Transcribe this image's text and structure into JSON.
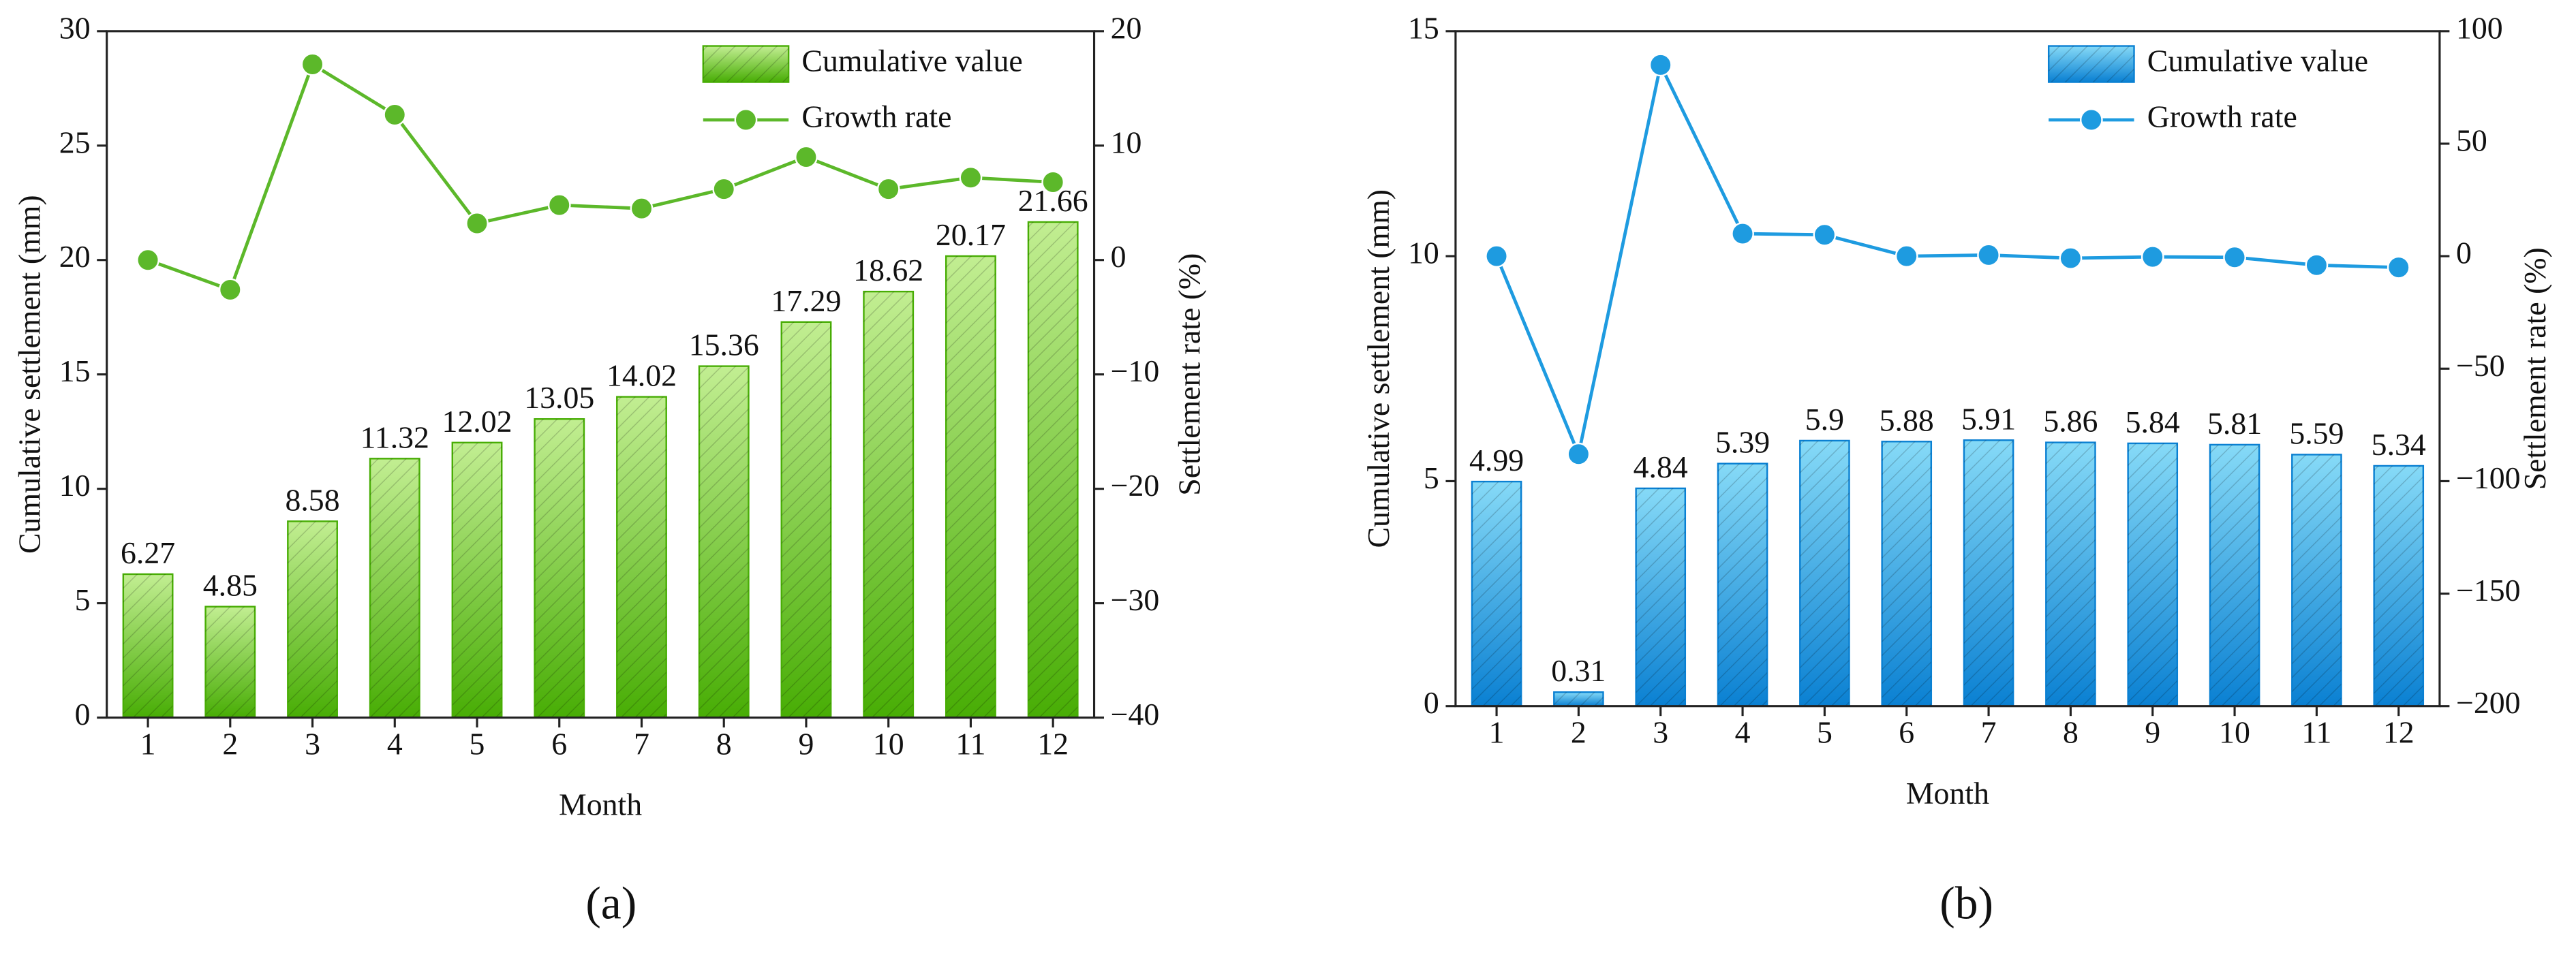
{
  "chart_data": [
    {
      "type": "combo",
      "label": "(a)",
      "x_label": "Month",
      "y_label": "Cumulative settlement (mm)",
      "y2_label": "Settlement rate (%)",
      "categories": [
        "1",
        "2",
        "3",
        "4",
        "5",
        "6",
        "7",
        "8",
        "9",
        "10",
        "11",
        "12"
      ],
      "series": [
        {
          "name": "Cumulative value",
          "type": "bar",
          "color": [
            "#c2ee92",
            "#48ad05"
          ],
          "values": [
            6.27,
            4.85,
            8.58,
            11.32,
            12.02,
            13.05,
            14.02,
            15.36,
            17.29,
            18.62,
            20.17,
            21.66
          ]
        },
        {
          "name": "Growth rate",
          "type": "line",
          "axis": "y2",
          "color": "#5cb82a",
          "values": [
            0,
            -2.6,
            17.1,
            12.7,
            3.2,
            4.8,
            4.5,
            6.2,
            9.0,
            6.2,
            7.2,
            6.8
          ]
        }
      ],
      "ylim": [
        0,
        30
      ],
      "yticks": [
        0,
        5,
        10,
        15,
        20,
        25,
        30
      ],
      "y2lim": [
        -40,
        20
      ],
      "y2ticks": [
        {
          "value": -40,
          "label": "−40"
        },
        {
          "value": -30,
          "label": "−30"
        },
        {
          "value": -20,
          "label": "−20"
        },
        {
          "value": -10,
          "label": "−10"
        },
        0,
        10,
        20
      ],
      "legend": "upper right"
    },
    {
      "type": "combo",
      "label": "(b)",
      "x_label": "Month",
      "y_label": "Cumulative settlement (mm)",
      "y2_label": "Settlement rate (%)",
      "categories": [
        "1",
        "2",
        "3",
        "4",
        "5",
        "6",
        "7",
        "8",
        "9",
        "10",
        "11",
        "12"
      ],
      "series": [
        {
          "name": "Cumulative value",
          "type": "bar",
          "color": [
            "#86daf7",
            "#0a80d2"
          ],
          "values": [
            4.99,
            0.31,
            4.84,
            5.39,
            5.9,
            5.88,
            5.91,
            5.86,
            5.84,
            5.81,
            5.59,
            5.34
          ]
        },
        {
          "name": "Growth rate",
          "type": "line",
          "axis": "y2",
          "color": "#1e9be0",
          "values": [
            0,
            -88,
            85,
            10,
            9.5,
            0,
            0.5,
            -0.9,
            -0.3,
            -0.5,
            -4,
            -5
          ]
        }
      ],
      "ylim": [
        0,
        15
      ],
      "yticks": [
        0,
        5,
        10,
        15
      ],
      "y2lim": [
        -200,
        100
      ],
      "y2ticks": [
        {
          "value": -200,
          "label": "−200"
        },
        {
          "value": -150,
          "label": "−150"
        },
        {
          "value": -100,
          "label": "−100"
        },
        {
          "value": -50,
          "label": "−50"
        },
        0,
        50,
        100
      ],
      "legend": "upper right"
    }
  ]
}
